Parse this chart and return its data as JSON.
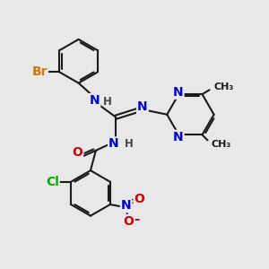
{
  "bg_color": "#e8e8e8",
  "bond_color": "#1a1a1a",
  "bond_width": 1.5,
  "atom_colors": {
    "N": "#0000cc",
    "O": "#cc0000",
    "Cl": "#00aa00",
    "Br": "#cc7700",
    "C": "#1a1a1a",
    "H": "#444444"
  },
  "font_size_atom": 10,
  "font_size_small": 8.5,
  "font_size_methyl": 8
}
